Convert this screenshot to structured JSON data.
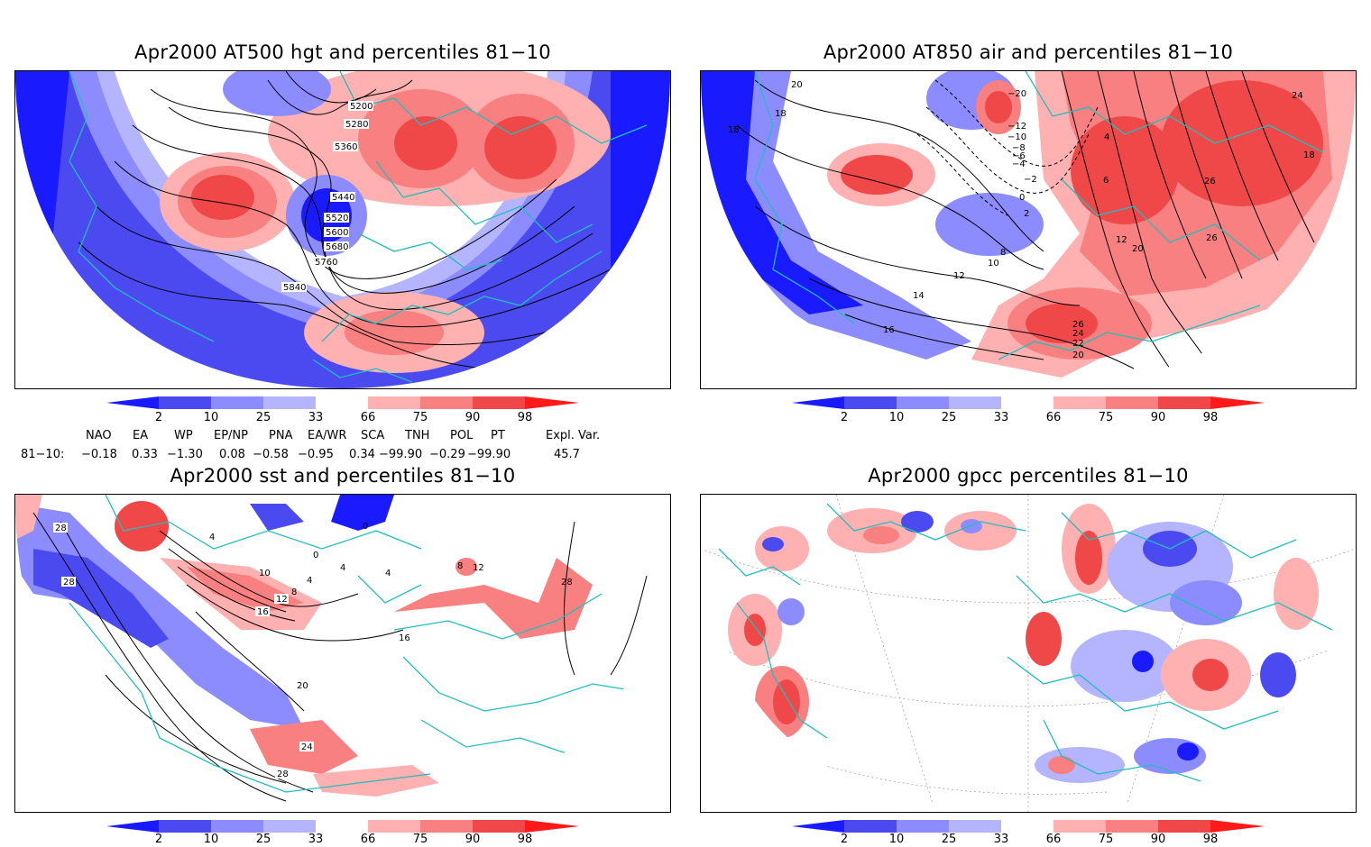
{
  "colors": {
    "blue_dark": "#1a1aff",
    "blue_mid": "#4a4af0",
    "blue_light": "#8c8cff",
    "blue_pale": "#b4b4ff",
    "red_pale": "#ffb0b0",
    "red_light": "#f88080",
    "red_mid": "#f04848",
    "red_dark": "#ff1a1a",
    "coast": "#1fbfbf",
    "contour": "#000000"
  },
  "panels": [
    {
      "title": "Apr2000 AT500 hgt and percentiles 81−10",
      "contour_labels": [
        "5200",
        "5280",
        "5360",
        "5440",
        "5520",
        "5600",
        "5680",
        "5760",
        "5840"
      ]
    },
    {
      "title": "Apr2000 AT850 air and percentiles 81−10",
      "contour_labels": [
        "20",
        "18",
        "18",
        "−20",
        "−12",
        "−10",
        "−8",
        "−6",
        "−4",
        "−2",
        "0",
        "2",
        "4",
        "6",
        "8",
        "10",
        "12",
        "14",
        "16",
        "20",
        "22",
        "24",
        "26",
        "26",
        "26",
        "24",
        "12",
        "20",
        "18"
      ]
    },
    {
      "title": "Apr2000 sst and percentiles 81−10",
      "contour_labels": [
        "28",
        "28",
        "4",
        "0",
        "0",
        "4",
        "4",
        "8",
        "12",
        "10",
        "4",
        "8",
        "12",
        "16",
        "16",
        "20",
        "24",
        "28",
        "28"
      ]
    },
    {
      "title": "Apr2000 gpcc percentiles 81−10",
      "contour_labels": []
    }
  ],
  "colorbar": {
    "ticks": [
      "2",
      "10",
      "25",
      "33",
      "66",
      "75",
      "90",
      "98"
    ]
  },
  "indices": {
    "headers": [
      "NAO",
      "EA",
      "WP",
      "EP/NP",
      "PNA",
      "EA/WR",
      "SCA",
      "TNH",
      "POL",
      "PT",
      "Expl. Var."
    ],
    "row_label": "81−10:",
    "values": [
      "−0.18",
      "0.33",
      "−1.30",
      "0.08",
      "−0.58",
      "−0.95",
      "0.34",
      "−99.90",
      "−0.29",
      "−99.90",
      "45.7"
    ]
  }
}
